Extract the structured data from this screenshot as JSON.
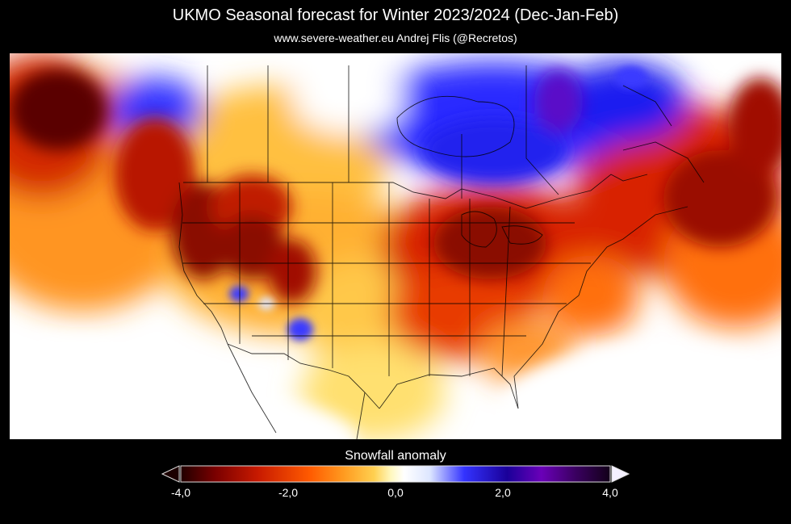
{
  "title": "UKMO Seasonal forecast for Winter 2023/2024 (Dec-Jan-Feb)",
  "subtitle": "www.severe-weather.eu  Andrej Flis (@Recretos)",
  "map": {
    "region": "North America",
    "variable": "Snowfall anomaly",
    "highlights": [
      {
        "area": "Pacific Northwest",
        "anomaly": "strong negative"
      },
      {
        "area": "Great Lakes / Ohio Valley",
        "anomaly": "strong negative"
      },
      {
        "area": "Northeast US / Atlantic Canada",
        "anomaly": "strong negative"
      },
      {
        "area": "Canadian Prairies",
        "anomaly": "mild negative"
      },
      {
        "area": "Hudson Bay / Quebec",
        "anomaly": "positive"
      },
      {
        "area": "Southwest US spots",
        "anomaly": "positive"
      },
      {
        "area": "Southeast US / Gulf",
        "anomaly": "near zero"
      }
    ]
  },
  "colorbar": {
    "label": "Snowfall anomaly",
    "min": -4.0,
    "max": 4.0,
    "ticks": [
      "-4,0",
      "-2,0",
      "0,0",
      "2,0",
      "4,0"
    ],
    "tick_values": [
      -4,
      -2,
      0,
      2,
      4
    ],
    "colors": [
      "#200000",
      "#7a0000",
      "#c81a00",
      "#ff5a00",
      "#ff9b20",
      "#ffd050",
      "#fff8c0",
      "#ffffff",
      "#dde6ff",
      "#3333ff",
      "#1a0099",
      "#6a00b8",
      "#3a0060",
      "#120018"
    ]
  }
}
